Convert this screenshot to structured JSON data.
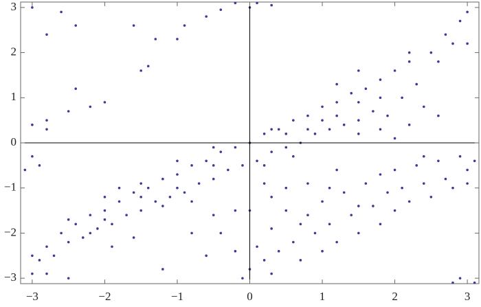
{
  "chart_data": {
    "type": "scatter",
    "color": "#3d3b96",
    "xlim": [
      -3.16,
      3.16
    ],
    "ylim": [
      -3.12,
      3.12
    ],
    "xticks": [
      {
        "value": -3,
        "label": "−3"
      },
      {
        "value": -2,
        "label": "−2"
      },
      {
        "value": -1,
        "label": "−1"
      },
      0,
      1,
      2,
      3
    ],
    "yticks": [
      {
        "value": -3,
        "label": "−3"
      },
      {
        "value": -2,
        "label": "−2"
      },
      {
        "value": -1,
        "label": "−1"
      },
      0,
      1,
      2,
      3
    ],
    "x": [
      -3.0,
      -2.9,
      -2.8,
      -2.7,
      -2.6,
      -2.5,
      -2.4,
      -2.3,
      -2.2,
      -2.1,
      -2.0,
      -1.9,
      -1.8,
      -1.7,
      -1.6,
      -1.5,
      -1.4,
      -1.3,
      -1.2,
      -1.1,
      -1.0,
      -0.9,
      -0.8,
      -0.7,
      -0.6,
      -0.5,
      -0.4,
      -0.3,
      -0.2,
      -0.1,
      0.0,
      0.1,
      0.2,
      0.3,
      0.4,
      0.5,
      0.6,
      0.7,
      0.8,
      0.9,
      1.0,
      1.1,
      1.2,
      1.3,
      1.4,
      1.5,
      1.6,
      1.7,
      1.8,
      1.9,
      2.0,
      2.1,
      2.2,
      2.3,
      2.5,
      2.7,
      2.9,
      3.0,
      2.8,
      2.6,
      2.4,
      2.2,
      2.0,
      -2.5,
      -2.0,
      -1.5,
      -1.0,
      -0.5,
      -0.5,
      0.3,
      0.5,
      0.8,
      1.0,
      1.2,
      1.5,
      1.5,
      1.8,
      1.8,
      -1.8,
      -2.2,
      -1.2,
      -0.8,
      0.2,
      0.6,
      -3.0,
      -2.8,
      -1.0,
      -1.5,
      -2.0,
      0.0,
      0.0,
      0.1,
      0.2,
      0.3,
      0.4,
      0.5,
      0.6,
      0.7,
      0.8,
      0.9,
      1.0,
      1.0,
      1.1,
      1.2,
      1.3,
      1.4,
      1.5,
      1.6,
      1.7,
      1.8,
      1.9,
      2.0,
      2.0,
      2.1,
      2.2,
      2.3,
      2.4,
      2.5,
      2.6,
      2.7,
      2.8,
      2.9,
      3.0,
      3.1,
      3.0,
      0.3,
      0.5,
      0.8,
      1.2,
      0.2,
      -0.2,
      -0.4,
      -0.2,
      -0.5,
      -0.1,
      0.3,
      -0.6,
      1.5,
      1.1,
      2.4,
      0.7,
      1.8,
      -0.2,
      0.0,
      0.1,
      -0.4,
      0.3,
      -1.6,
      -1.3,
      -1.0,
      -0.9,
      -0.6,
      -3.0,
      -2.8,
      -2.6,
      -2.4,
      -1.5,
      -1.4,
      -2.4,
      -2.2,
      -2.0,
      -2.5,
      -2.8,
      -3.0,
      -3.1,
      -2.9,
      -2.8,
      -3.0,
      -1.9,
      -1.6,
      -1.2,
      -0.8,
      -2.5,
      2.2,
      1.5,
      2.6,
      3.1,
      2.9,
      3.0,
      1.2,
      2.8
    ],
    "values": [
      -2.9,
      -2.6,
      -2.3,
      -2.5,
      -2.0,
      -2.2,
      -1.8,
      -2.1,
      -1.6,
      -1.9,
      -1.5,
      -1.8,
      -1.3,
      -1.6,
      -1.1,
      -1.5,
      -1.0,
      -1.3,
      -0.8,
      -1.2,
      -0.7,
      -1.1,
      -0.5,
      -0.9,
      -0.4,
      -0.8,
      -0.2,
      -0.6,
      -0.1,
      -0.5,
      0.0,
      -0.4,
      0.2,
      -0.2,
      0.3,
      -0.1,
      0.5,
      0.0,
      0.6,
      0.2,
      0.8,
      0.3,
      0.9,
      0.4,
      1.1,
      0.5,
      1.2,
      0.7,
      1.4,
      0.6,
      1.6,
      1.0,
      1.8,
      1.3,
      2.0,
      2.4,
      2.7,
      2.9,
      2.2,
      1.8,
      0.8,
      0.4,
      0.1,
      -1.7,
      -1.2,
      -0.9,
      -0.4,
      -0.5,
      -0.1,
      0.3,
      0.2,
      0.3,
      0.5,
      0.6,
      0.9,
      0.2,
      1.0,
      0.3,
      -1.0,
      -2.0,
      -1.4,
      -1.3,
      -0.5,
      -0.3,
      -2.5,
      -2.9,
      -1.0,
      -1.2,
      -1.7,
      -2.8,
      -1.5,
      -2.3,
      -2.6,
      -1.9,
      -2.4,
      -1.5,
      -2.2,
      -2.6,
      -1.6,
      -2.0,
      -2.4,
      -1.3,
      -1.8,
      -2.2,
      -1.1,
      -1.6,
      -2.0,
      -0.9,
      -1.4,
      -1.8,
      -1.1,
      -0.6,
      -1.5,
      -1.0,
      -1.3,
      -0.5,
      -0.9,
      -1.2,
      -0.4,
      -0.8,
      -1.0,
      -0.3,
      -0.6,
      -0.4,
      -0.9,
      -1.2,
      -1.0,
      -0.9,
      -0.6,
      -0.9,
      -1.5,
      -2.0,
      -2.4,
      -1.6,
      -3.0,
      -2.9,
      -2.5,
      -1.4,
      -1.0,
      -0.3,
      -1.8,
      -0.7,
      3.1,
      3.0,
      3.1,
      2.95,
      3.05,
      2.6,
      2.3,
      2.3,
      2.6,
      2.8,
      3.0,
      2.4,
      2.9,
      2.6,
      1.6,
      1.7,
      1.2,
      0.8,
      0.9,
      0.7,
      0.3,
      -0.3,
      -0.6,
      -0.5,
      0.5,
      0.4,
      -2.3,
      -2.1,
      -2.8,
      -2.0,
      -3.0,
      2.0,
      1.6,
      0.6,
      -3.1,
      -3.0,
      2.2,
      1.3,
      -3.1
    ]
  }
}
